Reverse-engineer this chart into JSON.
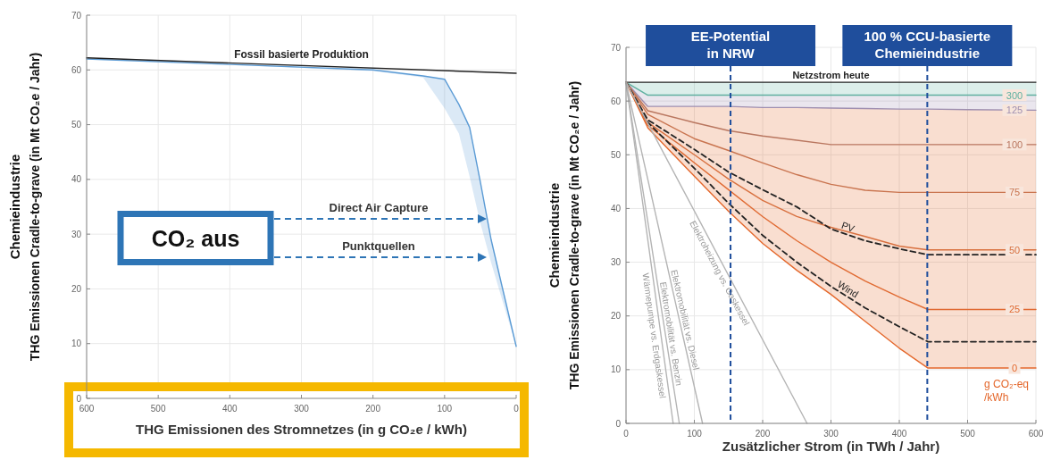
{
  "chart_data": [
    {
      "type": "line",
      "xlabel": "THG Emissionen des Stromnetzes (in g CO₂e / kWh)",
      "ylabel": "Chemieindustrie\nTHG Emissionen Cradle-to-grave (in Mt CO₂e / Jahr)",
      "xlim": [
        600,
        0
      ],
      "xticks": [
        600,
        500,
        400,
        300,
        200,
        100,
        0
      ],
      "ylim": [
        0,
        70
      ],
      "yticks": [
        0,
        10,
        20,
        30,
        40,
        50,
        60,
        70
      ],
      "grid": true,
      "series": [
        {
          "color": "#5b9bd5",
          "x": [
            600,
            400,
            200,
            130,
            100,
            80,
            65,
            50,
            35,
            20,
            0
          ],
          "values": [
            62,
            61,
            60,
            58.9,
            58.3,
            53.7,
            49.5,
            39.5,
            29,
            20.6,
            9.5
          ],
          "lower": [
            62,
            61,
            59.8,
            58.6,
            53,
            48.4,
            40.5,
            32,
            24.8,
            18.2,
            9.5
          ],
          "upper": [
            62,
            61,
            60,
            58.9,
            58.3,
            53.7,
            49.5,
            39.5,
            29,
            20.6,
            9.5
          ]
        },
        {
          "name": "Fossil basierte Produktion",
          "color": "#222222",
          "x": [
            600,
            0
          ],
          "values": [
            62.2,
            59.4
          ]
        }
      ],
      "annotations": [
        "CO₂ aus",
        "Direct Air Capture",
        "Punktquellen"
      ]
    },
    {
      "type": "line",
      "xlabel": "Zusätzlicher Strom (in TWh / Jahr)",
      "ylabel": "Chemieindustrie\nTHG Emissionen Cradle-to-grave (in Mt CO₂e / Jahr)",
      "xlim": [
        0,
        600
      ],
      "xticks": [
        0,
        100,
        200,
        300,
        400,
        500,
        600
      ],
      "ylim": [
        0,
        70
      ],
      "yticks": [
        0,
        10,
        20,
        30,
        40,
        50,
        60,
        70
      ],
      "grid": true,
      "x": [
        0,
        32,
        100,
        150,
        200,
        250,
        300,
        350,
        400,
        442,
        500,
        600
      ],
      "series": [
        {
          "name": "Netzstrom heute",
          "color": "#222222",
          "values": [
            63.5,
            63.5,
            63.5,
            63.5,
            63.5,
            63.5,
            63.5,
            63.5,
            63.5,
            63.5,
            63.5,
            63.5
          ]
        },
        {
          "name": "300",
          "color": "#5fb0a0",
          "values": [
            63.5,
            61.1,
            61.1,
            61.1,
            61.1,
            61.1,
            61.1,
            61.1,
            61.1,
            61.1,
            61.1,
            61.1
          ],
          "lower": [
            63.5,
            61.1,
            61.1,
            61.1,
            61.1,
            61.1,
            61.1,
            61.1,
            61.1,
            61.1,
            61.1,
            61.1
          ],
          "upper": [
            63.5,
            63.5,
            63.5,
            63.5,
            63.5,
            63.5,
            63.5,
            63.5,
            63.5,
            63.5,
            63.5,
            63.5
          ]
        },
        {
          "name": "125",
          "color": "#9f8fb0",
          "values": [
            63.5,
            59,
            59,
            59,
            58.8,
            58.8,
            58.7,
            58.6,
            58.5,
            58.5,
            58.4,
            58.3
          ],
          "lower": [
            63.5,
            59,
            59,
            59,
            58.8,
            58.8,
            58.7,
            58.6,
            58.5,
            58.5,
            58.4,
            58.3
          ],
          "upper": [
            63.5,
            61.1,
            61.1,
            61.1,
            61.1,
            61.1,
            61.1,
            61.1,
            61.1,
            61.1,
            61.1,
            61.1
          ]
        },
        {
          "name": "100",
          "color": "#b9765f",
          "values": [
            63.5,
            58.2,
            56,
            54.5,
            53.5,
            52.7,
            51.9,
            51.9,
            51.9,
            51.9,
            51.9,
            51.9
          ]
        },
        {
          "name": "75",
          "color": "#c9744f",
          "values": [
            63.5,
            57.5,
            53,
            50.8,
            48.5,
            46.3,
            44.5,
            43.4,
            43,
            43,
            43,
            43
          ]
        },
        {
          "name": "50",
          "color": "#d8703f",
          "values": [
            63.5,
            56,
            50,
            45.5,
            41.5,
            38.5,
            36.5,
            34.8,
            33,
            32.3,
            32.3,
            32.3
          ]
        },
        {
          "name": "PV",
          "color": "#222222",
          "line_style": "dashed",
          "values": [
            63.5,
            56.5,
            51,
            46.8,
            43.5,
            40.3,
            36.2,
            34,
            32.5,
            31.4,
            31.4,
            31.4
          ]
        },
        {
          "name": "25",
          "color": "#e06a32",
          "values": [
            63.5,
            55.5,
            48.5,
            43.5,
            38.5,
            34,
            30,
            26.5,
            23.5,
            21.2,
            21.2,
            21.2
          ]
        },
        {
          "name": "Wind",
          "color": "#222222",
          "line_style": "dashed",
          "values": [
            63.5,
            56,
            47.5,
            41,
            35,
            30,
            25.5,
            21.5,
            18,
            15.2,
            15.2,
            15.2
          ]
        },
        {
          "name": "0",
          "color": "#e4672b",
          "values": [
            63.5,
            55,
            46,
            39.5,
            33.5,
            28.5,
            24,
            19,
            14,
            10.3,
            10.3,
            10.3
          ],
          "lower": [
            63.5,
            55,
            46,
            39.5,
            33.5,
            28.5,
            24,
            19,
            14,
            10.3,
            10.3,
            10.3
          ],
          "upper": [
            63.5,
            59,
            59,
            59,
            58.8,
            58.8,
            58.7,
            58.6,
            58.5,
            58.5,
            58.4,
            58.3
          ]
        },
        {
          "name": "Wärmepumpe vs. Erdgaskessel",
          "color": "#b4b4b4",
          "x": [
            0,
            69
          ],
          "values": [
            63.5,
            0
          ]
        },
        {
          "name": "Elektromobilität vs. Benzin",
          "color": "#b4b4b4",
          "x": [
            0,
            78
          ],
          "values": [
            63.5,
            0
          ]
        },
        {
          "name": "Elektromobilität vs. Diesel",
          "color": "#b4b4b4",
          "x": [
            0,
            112
          ],
          "values": [
            63.5,
            0
          ]
        },
        {
          "name": "Elektroheizung vs. Gaskessel",
          "color": "#b4b4b4",
          "x": [
            0,
            265
          ],
          "values": [
            63.5,
            0
          ]
        }
      ],
      "ref_lines": [
        {
          "axis": "x",
          "value": 153,
          "label": "EE-Potential\nin NRW",
          "color": "#1f4e9c",
          "line_style": "dashed"
        },
        {
          "axis": "x",
          "value": 441,
          "label": "100 % CCU-basierte\nChemieindustrie",
          "color": "#1f4e9c",
          "line_style": "dashed"
        }
      ],
      "annotations": [
        "g CO₂-eq\n/kWh"
      ]
    }
  ]
}
